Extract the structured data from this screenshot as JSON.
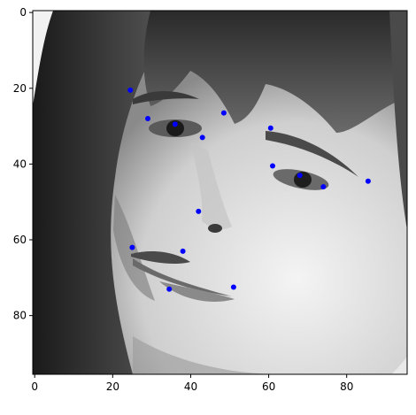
{
  "chart_data": {
    "type": "scatter",
    "title": "",
    "xlabel": "",
    "ylabel": "",
    "xlim": [
      -0.5,
      95.5
    ],
    "ylim": [
      95.5,
      -0.5
    ],
    "x_ticks": [
      0,
      20,
      40,
      60,
      80
    ],
    "y_ticks": [
      0,
      20,
      40,
      60,
      80
    ],
    "x_tick_labels": [
      "0",
      "20",
      "40",
      "60",
      "80"
    ],
    "y_tick_labels": [
      "0",
      "20",
      "40",
      "60",
      "80"
    ],
    "grid": false,
    "legend": "none",
    "background_image": "grayscale-face-photo",
    "marker_color": "#0000ff",
    "series": [
      {
        "x": [
          24.5,
          29.0,
          36.0,
          43.0,
          48.5,
          60.5,
          61.0,
          68.0,
          74.0,
          85.5,
          42.0,
          25.0,
          38.0,
          34.5,
          51.0
        ],
        "y": [
          20.5,
          28.0,
          29.5,
          33.0,
          26.5,
          30.5,
          40.5,
          43.0,
          46.0,
          44.5,
          52.5,
          62.0,
          63.0,
          73.0,
          72.5
        ]
      }
    ]
  }
}
